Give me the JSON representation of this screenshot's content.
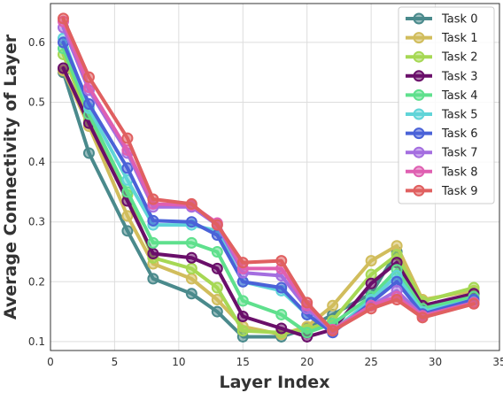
{
  "chart_data": {
    "type": "line",
    "xlabel": "Layer Index",
    "ylabel": "Average Connectivity of Layer",
    "xlim": [
      0,
      35
    ],
    "ylim": [
      0.085,
      0.665
    ],
    "xticks": [
      0,
      5,
      10,
      15,
      20,
      25,
      30,
      35
    ],
    "yticks": [
      0.1,
      0.2,
      0.3,
      0.4,
      0.5,
      0.6
    ],
    "grid": true,
    "legend_position": "top-right",
    "x": [
      1,
      3,
      6,
      8,
      11,
      13,
      15,
      18,
      20,
      22,
      25,
      27,
      29,
      33
    ],
    "series": [
      {
        "name": "Task 0",
        "color": "#4a8a8c",
        "values": [
          0.55,
          0.415,
          0.285,
          0.205,
          0.18,
          0.15,
          0.108,
          0.108,
          0.122,
          0.145,
          0.18,
          0.25,
          0.15,
          0.17
        ]
      },
      {
        "name": "Task 1",
        "color": "#d1bd5c",
        "values": [
          0.553,
          0.46,
          0.31,
          0.23,
          0.205,
          0.17,
          0.125,
          0.112,
          0.125,
          0.16,
          0.235,
          0.26,
          0.17,
          0.185
        ]
      },
      {
        "name": "Task 2",
        "color": "#a6d854",
        "values": [
          0.58,
          0.47,
          0.345,
          0.24,
          0.222,
          0.19,
          0.118,
          0.115,
          0.12,
          0.135,
          0.212,
          0.245,
          0.167,
          0.19
        ]
      },
      {
        "name": "Task 3",
        "color": "#6a0f6a",
        "values": [
          0.557,
          0.465,
          0.335,
          0.247,
          0.24,
          0.222,
          0.142,
          0.122,
          0.108,
          0.12,
          0.197,
          0.232,
          0.16,
          0.18
        ]
      },
      {
        "name": "Task 4",
        "color": "#5fe08d",
        "values": [
          0.59,
          0.48,
          0.35,
          0.265,
          0.265,
          0.25,
          0.168,
          0.145,
          0.115,
          0.13,
          0.175,
          0.22,
          0.155,
          0.175
        ]
      },
      {
        "name": "Task 5",
        "color": "#60d4d8",
        "values": [
          0.607,
          0.49,
          0.37,
          0.295,
          0.295,
          0.285,
          0.2,
          0.185,
          0.145,
          0.118,
          0.17,
          0.21,
          0.15,
          0.17
        ]
      },
      {
        "name": "Task 6",
        "color": "#4a62d8",
        "values": [
          0.6,
          0.497,
          0.39,
          0.302,
          0.3,
          0.278,
          0.2,
          0.19,
          0.145,
          0.115,
          0.165,
          0.2,
          0.146,
          0.17
        ]
      },
      {
        "name": "Task 7",
        "color": "#a46ee0",
        "values": [
          0.625,
          0.52,
          0.415,
          0.325,
          0.325,
          0.295,
          0.215,
          0.21,
          0.155,
          0.118,
          0.16,
          0.185,
          0.143,
          0.165
        ]
      },
      {
        "name": "Task 8",
        "color": "#df5fb1",
        "values": [
          0.635,
          0.525,
          0.42,
          0.33,
          0.328,
          0.298,
          0.222,
          0.222,
          0.16,
          0.12,
          0.16,
          0.175,
          0.143,
          0.165
        ]
      },
      {
        "name": "Task 9",
        "color": "#e06060",
        "values": [
          0.64,
          0.542,
          0.44,
          0.338,
          0.33,
          0.295,
          0.232,
          0.235,
          0.165,
          0.118,
          0.155,
          0.17,
          0.14,
          0.163
        ]
      }
    ]
  }
}
